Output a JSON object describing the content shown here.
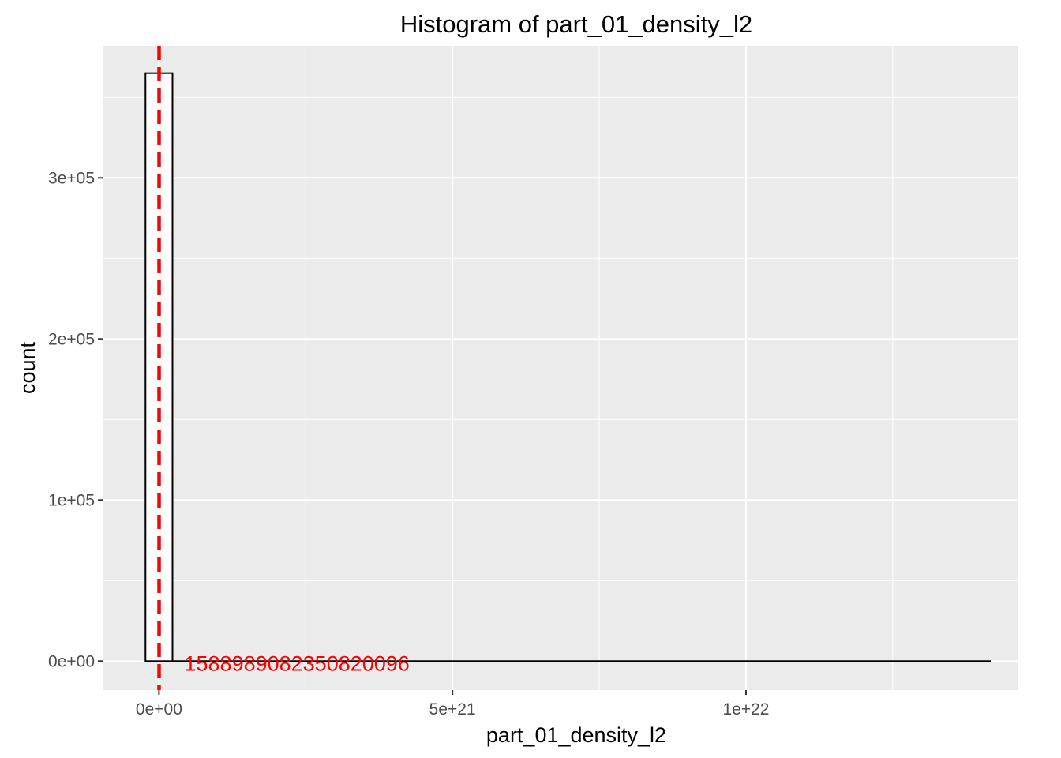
{
  "colors": {
    "panel_bg": "#EBEBEB",
    "grid": "#FFFFFF",
    "bar_fill": "#FFFFFF",
    "bar_outline": "#000000",
    "mean_line": "#FF0000",
    "tick_text": "#4D4D4D"
  },
  "chart_data": {
    "type": "bar",
    "title": "Histogram of  part_01_density_l2",
    "xlabel": "part_01_density_l2",
    "ylabel": "count",
    "grid": true,
    "x_ticks": [
      {
        "value": 0,
        "label": "0e+00"
      },
      {
        "value": 5e+21,
        "label": "5e+21"
      },
      {
        "value": 1e+22,
        "label": "1e+22"
      }
    ],
    "y_ticks": [
      {
        "value": 0,
        "label": "0e+00"
      },
      {
        "value": 100000,
        "label": "1e+05"
      },
      {
        "value": 200000,
        "label": "2e+05"
      },
      {
        "value": 300000,
        "label": "3e+05"
      }
    ],
    "xlim": [
      -9.6e+20,
      1.464e+22
    ],
    "ylim": [
      -18000,
      382000
    ],
    "bins": [
      {
        "x0": -2.3e+20,
        "x1": 2.3e+20,
        "count": 365000
      }
    ],
    "zero_baseline_x_end": 1.417e+22,
    "mean_line": {
      "x": 1.58898908235082e+18,
      "label": "1588989082350820096"
    }
  }
}
